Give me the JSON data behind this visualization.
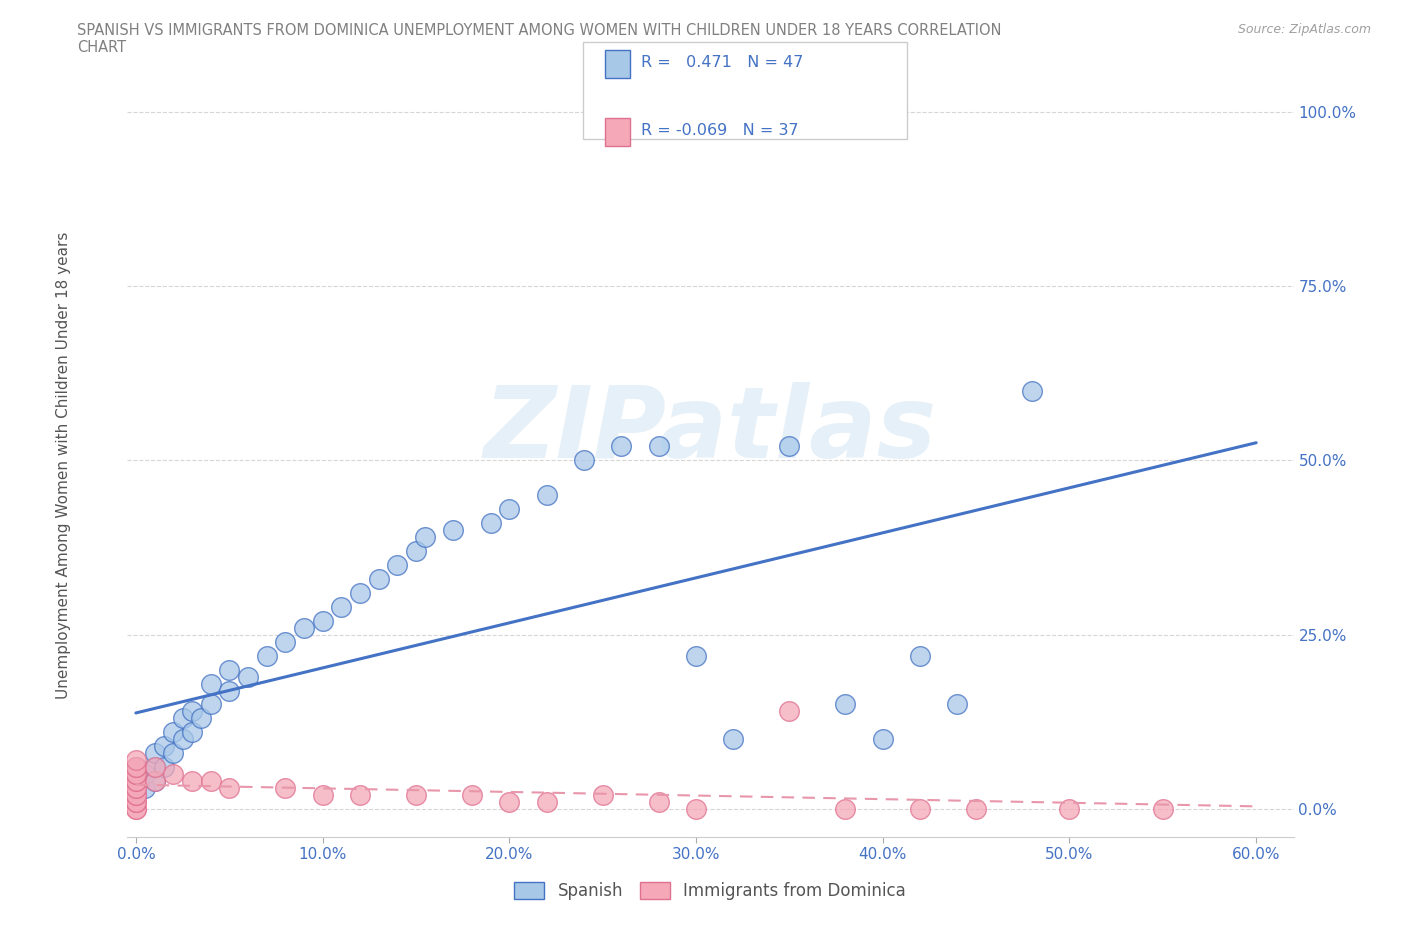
{
  "title_line1": "SPANISH VS IMMIGRANTS FROM DOMINICA UNEMPLOYMENT AMONG WOMEN WITH CHILDREN UNDER 18 YEARS CORRELATION",
  "title_line2": "CHART",
  "source": "Source: ZipAtlas.com",
  "ylabel": "Unemployment Among Women with Children Under 18 years",
  "watermark": "ZIPatlas",
  "xlim": [
    -0.005,
    0.62
  ],
  "ylim": [
    -0.04,
    1.08
  ],
  "xticks": [
    0.0,
    0.1,
    0.2,
    0.3,
    0.4,
    0.5,
    0.6
  ],
  "xticklabels": [
    "0.0%",
    "10.0%",
    "20.0%",
    "30.0%",
    "40.0%",
    "50.0%",
    "60.0%"
  ],
  "yticks": [
    0.0,
    0.25,
    0.5,
    0.75,
    1.0
  ],
  "yticklabels": [
    "0.0%",
    "25.0%",
    "50.0%",
    "75.0%",
    "100.0%"
  ],
  "legend_r_spanish": "0.471",
  "legend_n_spanish": "47",
  "legend_r_dominica": "-0.069",
  "legend_n_dominica": "37",
  "spanish_color": "#a8c8e8",
  "dominica_color": "#f4a8b8",
  "spanish_edge_color": "#4472c4",
  "dominica_edge_color": "#e07090",
  "spanish_line_color": "#4472c4",
  "dominica_line_color": "#e896aa",
  "title_color": "#808080",
  "source_color": "#a0a0a0",
  "tick_color": "#4472c4",
  "background_color": "#ffffff",
  "spanish_x": [
    0.0,
    0.0,
    0.0,
    0.005,
    0.005,
    0.01,
    0.01,
    0.01,
    0.015,
    0.015,
    0.02,
    0.02,
    0.025,
    0.025,
    0.03,
    0.03,
    0.035,
    0.04,
    0.04,
    0.05,
    0.05,
    0.06,
    0.07,
    0.08,
    0.09,
    0.1,
    0.11,
    0.12,
    0.13,
    0.14,
    0.15,
    0.155,
    0.17,
    0.19,
    0.2,
    0.22,
    0.24,
    0.26,
    0.28,
    0.3,
    0.32,
    0.35,
    0.38,
    0.4,
    0.42,
    0.44,
    0.48
  ],
  "spanish_y": [
    0.02,
    0.04,
    0.06,
    0.03,
    0.05,
    0.04,
    0.06,
    0.08,
    0.06,
    0.09,
    0.08,
    0.11,
    0.1,
    0.13,
    0.11,
    0.14,
    0.13,
    0.15,
    0.18,
    0.17,
    0.2,
    0.19,
    0.22,
    0.24,
    0.26,
    0.27,
    0.29,
    0.31,
    0.33,
    0.35,
    0.37,
    0.39,
    0.4,
    0.41,
    0.43,
    0.45,
    0.5,
    0.52,
    0.52,
    0.22,
    0.1,
    0.52,
    0.15,
    0.1,
    0.22,
    0.15,
    0.6
  ],
  "dominica_x": [
    0.0,
    0.0,
    0.0,
    0.0,
    0.0,
    0.0,
    0.0,
    0.0,
    0.0,
    0.0,
    0.0,
    0.0,
    0.0,
    0.0,
    0.0,
    0.01,
    0.01,
    0.02,
    0.03,
    0.04,
    0.05,
    0.08,
    0.1,
    0.12,
    0.15,
    0.18,
    0.2,
    0.22,
    0.25,
    0.28,
    0.3,
    0.35,
    0.38,
    0.42,
    0.45,
    0.5,
    0.55
  ],
  "dominica_y": [
    0.0,
    0.0,
    0.01,
    0.01,
    0.02,
    0.02,
    0.03,
    0.03,
    0.04,
    0.04,
    0.05,
    0.05,
    0.06,
    0.06,
    0.07,
    0.04,
    0.06,
    0.05,
    0.04,
    0.04,
    0.03,
    0.03,
    0.02,
    0.02,
    0.02,
    0.02,
    0.01,
    0.01,
    0.02,
    0.01,
    0.0,
    0.14,
    0.0,
    0.0,
    0.0,
    0.0,
    0.0
  ]
}
